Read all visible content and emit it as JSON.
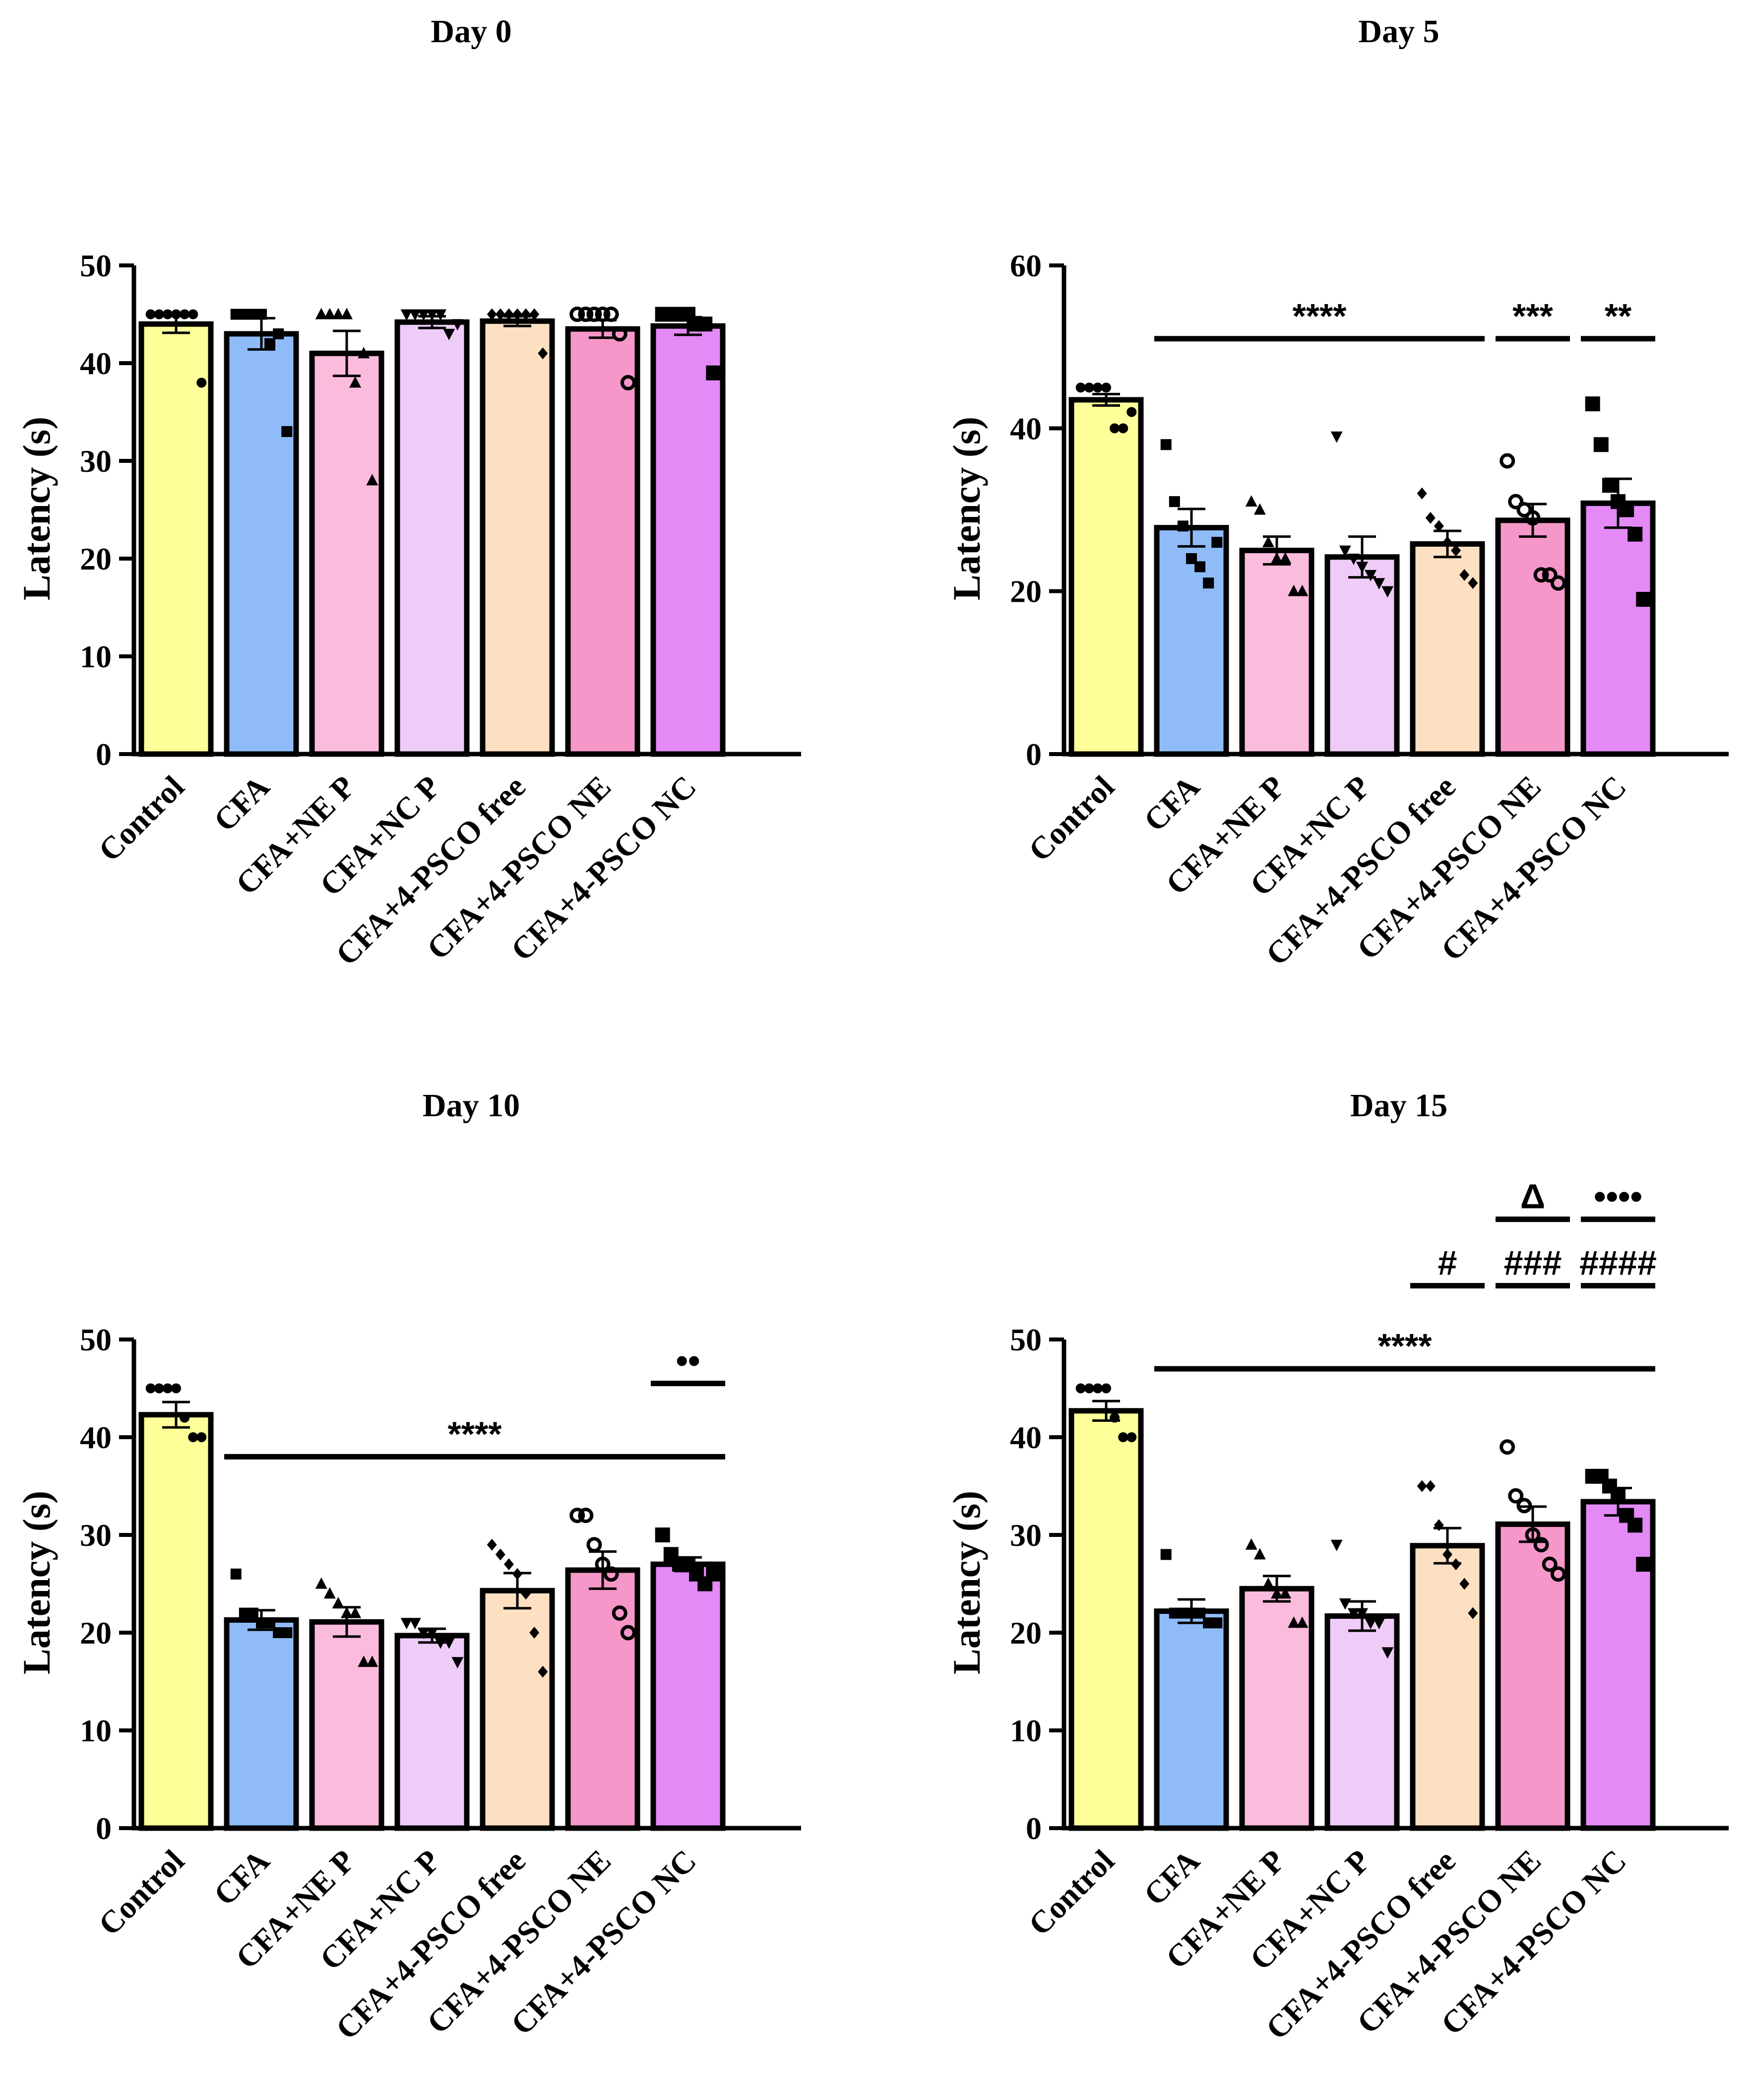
{
  "figure": {
    "colors": [
      "#ffff99",
      "#8fbcf9",
      "#fbbbdd",
      "#efccf8",
      "#fde0c2",
      "#f597c8",
      "#e38af6"
    ],
    "marker_shapes": [
      "circle",
      "square",
      "triangle",
      "triangle-down",
      "diamond",
      "ring",
      "square-large"
    ]
  },
  "chart_data": [
    {
      "type": "bar",
      "title": "Day 0",
      "ylabel": "Latency (s)",
      "ylim": [
        0,
        50
      ],
      "yticks": [
        0,
        10,
        20,
        30,
        40,
        50
      ],
      "categories": [
        "Control",
        "CFA",
        "CFA+NE P",
        "CFA+NC P",
        "CFA+4-PSCO free",
        "CFA+4-PSCO NE",
        "CFA+4-PSCO NC"
      ],
      "means": [
        44,
        43,
        41,
        44.2,
        44.3,
        43.5,
        43.8
      ],
      "sem": [
        0.9,
        1.6,
        2.3,
        0.6,
        0.5,
        0.9,
        0.9
      ],
      "points": [
        [
          45,
          45,
          45,
          45,
          45,
          45,
          38
        ],
        [
          45,
          45,
          45,
          45,
          42,
          43,
          33
        ],
        [
          45,
          45,
          45,
          45,
          38,
          41,
          28
        ],
        [
          45,
          45,
          45,
          45,
          45,
          43,
          44
        ],
        [
          45,
          45,
          45,
          45,
          45,
          45,
          41
        ],
        [
          45,
          45,
          45,
          45,
          45,
          43,
          38
        ],
        [
          45,
          45,
          45,
          45,
          44,
          44,
          39
        ]
      ],
      "annotations": []
    },
    {
      "type": "bar",
      "title": "Day 5",
      "ylabel": "Latency (s)",
      "ylim": [
        0,
        60
      ],
      "yticks": [
        0,
        20,
        40,
        60
      ],
      "categories": [
        "Control",
        "CFA",
        "CFA+NE P",
        "CFA+NC P",
        "CFA+4-PSCO free",
        "CFA+4-PSCO NE",
        "CFA+4-PSCO NC"
      ],
      "means": [
        43.5,
        27.8,
        25,
        24.2,
        25.8,
        28.7,
        30.8
      ],
      "sem": [
        0.7,
        2.3,
        1.7,
        2.5,
        1.6,
        2,
        3
      ],
      "points": [
        [
          45,
          45,
          45,
          45,
          40,
          40,
          42
        ],
        [
          38,
          31,
          28,
          24,
          23,
          21,
          26
        ],
        [
          31,
          30,
          26,
          24,
          24,
          20,
          20
        ],
        [
          39,
          25,
          24,
          23,
          22,
          21,
          20
        ],
        [
          32,
          29,
          28,
          26,
          25,
          22,
          21
        ],
        [
          36,
          31,
          30,
          29,
          22,
          22,
          21
        ],
        [
          43,
          38,
          33,
          31,
          30,
          27,
          19
        ]
      ],
      "annotations": [
        {
          "label": "****",
          "from": 1,
          "to": 4,
          "y": 51
        },
        {
          "label": "***",
          "from": 5,
          "to": 5,
          "y": 51
        },
        {
          "label": "**",
          "from": 6,
          "to": 6,
          "y": 51
        }
      ]
    },
    {
      "type": "bar",
      "title": "Day 10",
      "ylabel": "Latency (s)",
      "ylim": [
        0,
        50
      ],
      "yticks": [
        0,
        10,
        20,
        30,
        40,
        50
      ],
      "categories": [
        "Control",
        "CFA",
        "CFA+NE P",
        "CFA+NC P",
        "CFA+4-PSCO free",
        "CFA+4-PSCO NE",
        "CFA+4-PSCO NC"
      ],
      "means": [
        42.3,
        21.3,
        21.1,
        19.7,
        24.3,
        26.4,
        27
      ],
      "sem": [
        1.3,
        1,
        1.5,
        0.7,
        1.8,
        1.9,
        0.7
      ],
      "points": [
        [
          45,
          45,
          45,
          45,
          42,
          40,
          40
        ],
        [
          26,
          22,
          22,
          21,
          21,
          20,
          20
        ],
        [
          25,
          24,
          23,
          22,
          22,
          17,
          17
        ],
        [
          21,
          21,
          20,
          20,
          19,
          19,
          17
        ],
        [
          29,
          28,
          27,
          26,
          24,
          20,
          16
        ],
        [
          32,
          32,
          29,
          27,
          26,
          22,
          20
        ],
        [
          30,
          28,
          27,
          27,
          26,
          25,
          26
        ]
      ],
      "annotations": [
        {
          "label": "****",
          "from": 1,
          "to": 6,
          "y": 38
        },
        {
          "label": "••",
          "from": 6,
          "to": 6,
          "y": 45.5
        }
      ]
    },
    {
      "type": "bar",
      "title": "Day 15",
      "ylabel": "Latency (s)",
      "ylim": [
        0,
        50
      ],
      "yticks": [
        0,
        10,
        20,
        30,
        40,
        50
      ],
      "categories": [
        "Control",
        "CFA",
        "CFA+NE P",
        "CFA+NC P",
        "CFA+4-PSCO free",
        "CFA+4-PSCO NE",
        "CFA+4-PSCO NC"
      ],
      "means": [
        42.7,
        22.2,
        24.5,
        21.7,
        28.9,
        31.1,
        33.4
      ],
      "sem": [
        1,
        1.2,
        1.3,
        1.5,
        1.8,
        1.8,
        1.4
      ],
      "points": [
        [
          45,
          45,
          45,
          45,
          42,
          40,
          40
        ],
        [
          28,
          22,
          22,
          22,
          22,
          21,
          21
        ],
        [
          29,
          28,
          25,
          24,
          24,
          21,
          21
        ],
        [
          29,
          23,
          22,
          22,
          21,
          21,
          18
        ],
        [
          35,
          35,
          31,
          28,
          27,
          25,
          22
        ],
        [
          39,
          34,
          33,
          30,
          29,
          27,
          26
        ],
        [
          36,
          36,
          35,
          34,
          32,
          31,
          27
        ]
      ],
      "annotations": [
        {
          "label": "****",
          "from": 1,
          "to": 6,
          "y": 47
        },
        {
          "label": "#",
          "from": 4,
          "to": 4,
          "y": 55.5
        },
        {
          "label": "###",
          "from": 5,
          "to": 5,
          "y": 55.5
        },
        {
          "label": "####",
          "from": 6,
          "to": 6,
          "y": 55.5
        },
        {
          "label": "Δ",
          "from": 5,
          "to": 5,
          "y": 62.3
        },
        {
          "label": "••••",
          "from": 6,
          "to": 6,
          "y": 62.3
        }
      ]
    }
  ]
}
